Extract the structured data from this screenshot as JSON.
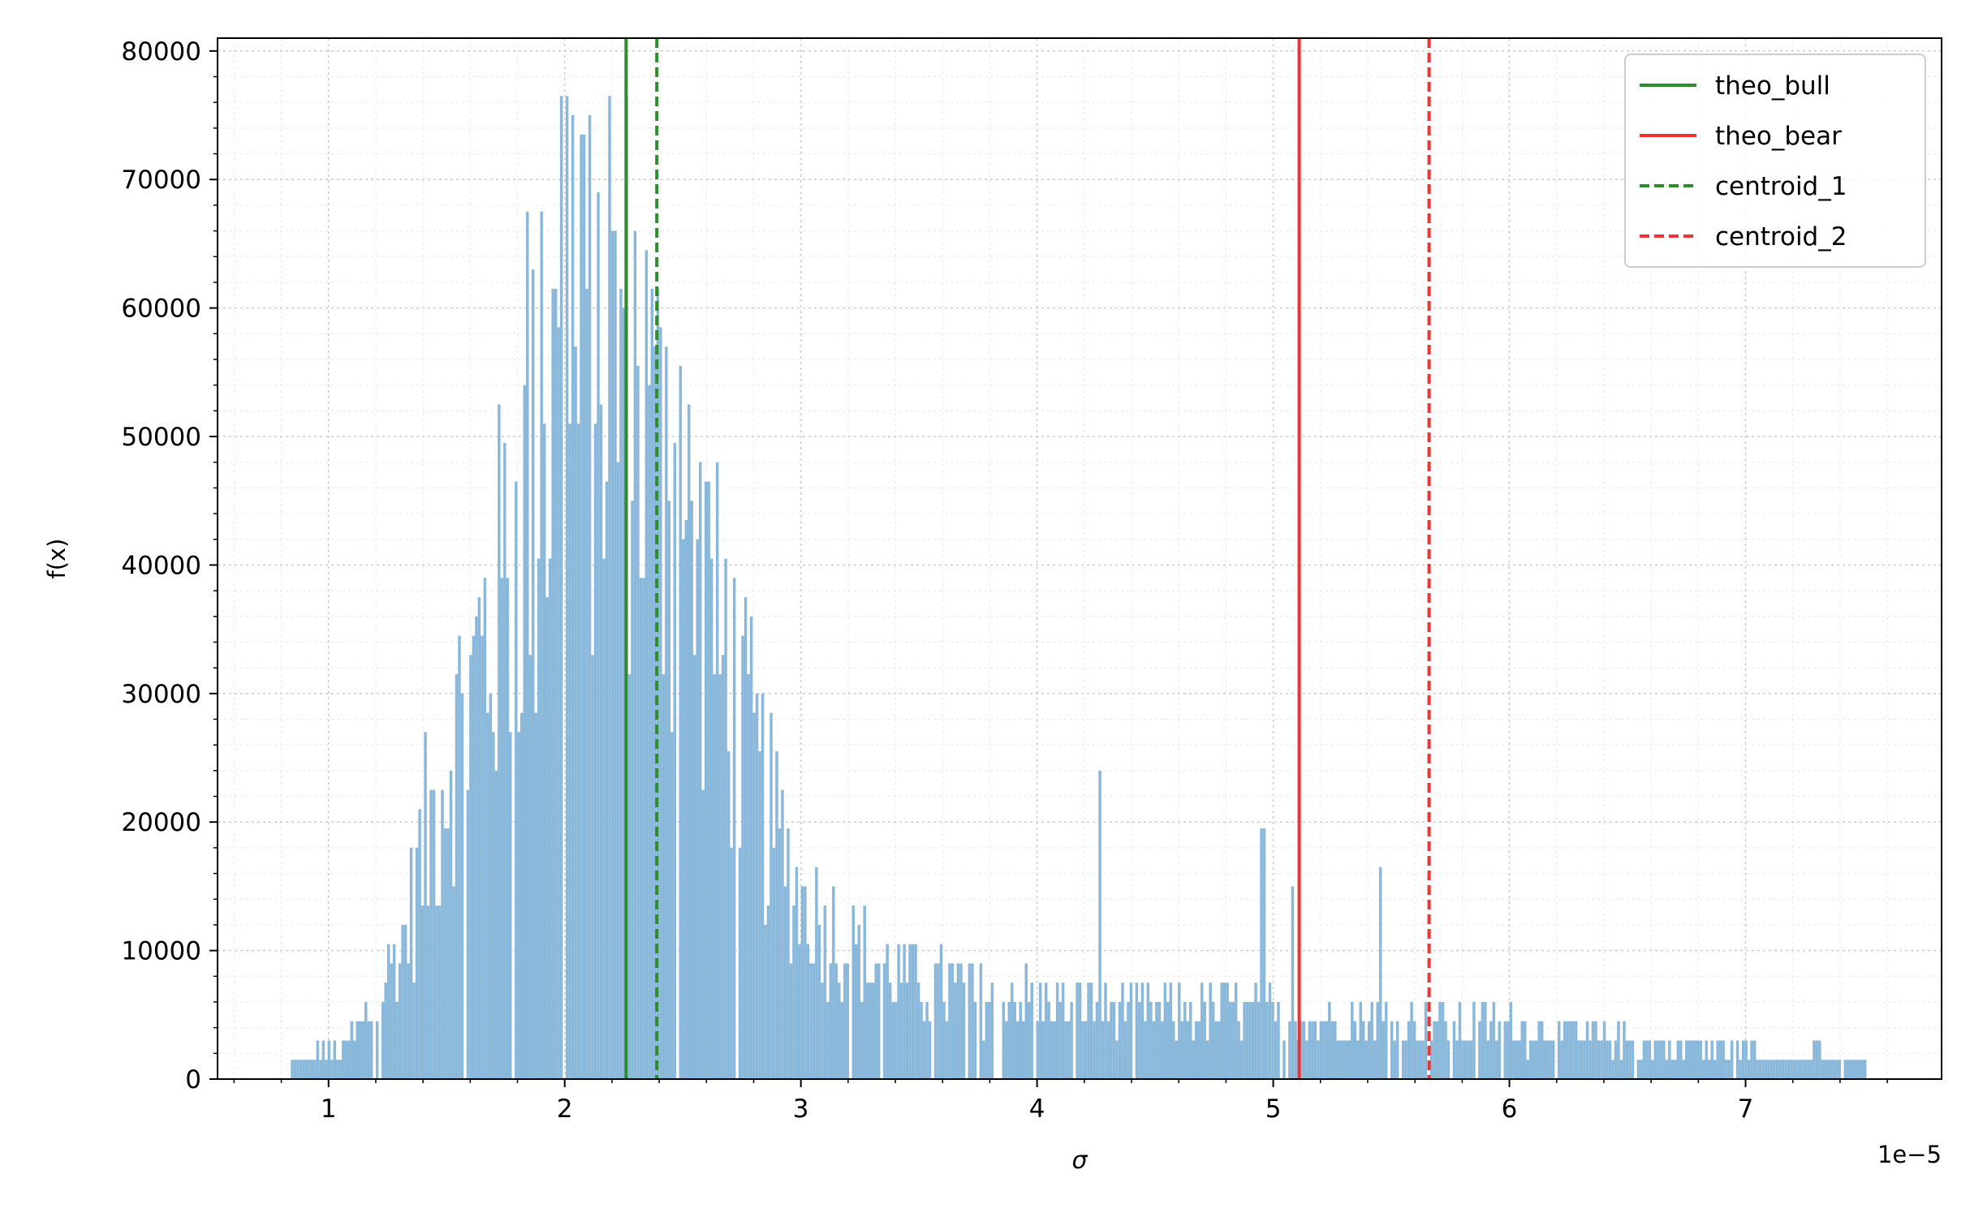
{
  "chart_data": {
    "type": "bar",
    "subtype": "histogram",
    "xlabel": "σ",
    "ylabel": "f(x)",
    "x_offset_text": "1e−5",
    "xlim": [
      0.53,
      7.83
    ],
    "ylim": [
      0,
      81000
    ],
    "xticks": [
      1,
      2,
      3,
      4,
      5,
      6,
      7
    ],
    "yticks": [
      0,
      10000,
      20000,
      30000,
      40000,
      50000,
      60000,
      70000,
      80000
    ],
    "grid": true,
    "legend_position": "top-right",
    "bin_width": 0.012,
    "colors": {
      "histogram": "#8ab8da",
      "green": "#2e8b2e",
      "red": "#ee3333"
    },
    "vlines": [
      {
        "label": "theo_bull",
        "x": 2.26,
        "color": "#2e8b2e",
        "style": "solid"
      },
      {
        "label": "theo_bear",
        "x": 5.11,
        "color": "#ee3333",
        "style": "solid"
      },
      {
        "label": "centroid_1",
        "x": 2.39,
        "color": "#2e8b2e",
        "style": "dashed"
      },
      {
        "label": "centroid_2",
        "x": 5.66,
        "color": "#ee3333",
        "style": "dashed"
      }
    ],
    "density_profile": [
      [
        0.84,
        1500
      ],
      [
        1.0,
        2000
      ],
      [
        1.1,
        3000
      ],
      [
        1.2,
        6500
      ],
      [
        1.3,
        10000
      ],
      [
        1.4,
        18000
      ],
      [
        1.5,
        25000
      ],
      [
        1.6,
        30000
      ],
      [
        1.7,
        36000
      ],
      [
        1.8,
        43000
      ],
      [
        1.9,
        47000
      ],
      [
        2.0,
        52000
      ],
      [
        2.1,
        56000
      ],
      [
        2.2,
        58000
      ],
      [
        2.3,
        54000
      ],
      [
        2.4,
        47000
      ],
      [
        2.5,
        42000
      ],
      [
        2.6,
        36000
      ],
      [
        2.7,
        30000
      ],
      [
        2.8,
        24000
      ],
      [
        2.9,
        18000
      ],
      [
        3.0,
        14000
      ],
      [
        3.2,
        10000
      ],
      [
        3.4,
        8000
      ],
      [
        3.6,
        7000
      ],
      [
        4.0,
        6000
      ],
      [
        4.5,
        5500
      ],
      [
        5.0,
        5000
      ],
      [
        5.5,
        4500
      ],
      [
        6.0,
        4000
      ],
      [
        6.5,
        3000
      ],
      [
        7.0,
        2000
      ],
      [
        7.5,
        1500
      ]
    ],
    "tall_bins": [
      [
        2.0,
        76000
      ],
      [
        2.03,
        75000
      ],
      [
        1.98,
        77000
      ],
      [
        2.07,
        73000
      ],
      [
        2.18,
        77000
      ],
      [
        2.14,
        69000
      ],
      [
        2.2,
        66000
      ],
      [
        2.42,
        57000
      ],
      [
        1.84,
        67000
      ],
      [
        1.9,
        68000
      ],
      [
        1.95,
        61000
      ],
      [
        2.35,
        54000
      ],
      [
        2.48,
        55000
      ],
      [
        2.6,
        47000
      ],
      [
        2.68,
        41000
      ],
      [
        4.26,
        24000
      ],
      [
        4.95,
        20000
      ],
      [
        5.45,
        16000
      ],
      [
        5.08,
        15000
      ]
    ]
  }
}
